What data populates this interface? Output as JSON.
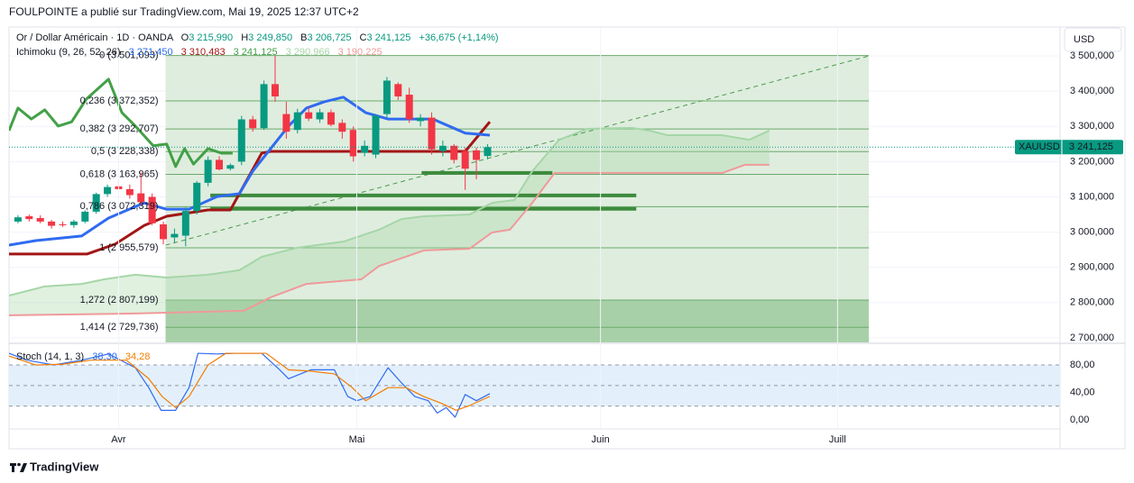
{
  "header": {
    "publisher": "FOULPOINTE a publié sur TradingView.com, Mai 19, 2025 12:37 UTC+2",
    "symbol": "Or / Dollar Américain · 1D · OANDA",
    "ohlc": [
      {
        "key": "O",
        "value": "3 215,990"
      },
      {
        "key": "H",
        "value": "3 249,850"
      },
      {
        "key": "B",
        "value": "3 206,725"
      },
      {
        "key": "C",
        "value": "3 241,125"
      }
    ],
    "change": "+36,675 (+1,14%)",
    "ichimoku": {
      "name": "Ichimoku (9, 26, 52, 26)",
      "values": [
        "3 271,450",
        "3 310,483",
        "3 241,125",
        "3 290,966",
        "3 190,225"
      ]
    },
    "currency": "USD",
    "brand": "TradingView"
  },
  "last_price": {
    "symbol": "XAUUSD",
    "value": 3241.125,
    "label": "3 241,125",
    "color": "#089981"
  },
  "chart_data": [
    {
      "type": "candlestick",
      "up_color": "#089981",
      "down_color": "#f23645",
      "xlim": [
        0,
        94
      ],
      "ylim": [
        2687,
        3582
      ],
      "xticks": [
        {
          "value": 9.8,
          "label": "Avr"
        },
        {
          "value": 31.1,
          "label": "Mai"
        },
        {
          "value": 52.9,
          "label": "Juin"
        },
        {
          "value": 74.1,
          "label": "Juill"
        }
      ],
      "yticks": [
        {
          "value": 2700,
          "label": "2 700,000"
        },
        {
          "value": 2800,
          "label": "2 800,000"
        },
        {
          "value": 2900,
          "label": "2 900,000"
        },
        {
          "value": 3000,
          "label": "3 000,000"
        },
        {
          "value": 3100,
          "label": "3 100,000"
        },
        {
          "value": 3200,
          "label": "3 200,000"
        },
        {
          "value": 3300,
          "label": "3 300,000"
        },
        {
          "value": 3400,
          "label": "3 400,000"
        },
        {
          "value": 3500,
          "label": "3 500,000"
        }
      ],
      "x": [
        0.8,
        1.8,
        2.8,
        3.8,
        4.8,
        5.8,
        6.8,
        7.8,
        8.8,
        9.8,
        10.8,
        11.8,
        12.8,
        13.8,
        14.8,
        15.8,
        16.8,
        17.8,
        18.8,
        19.8,
        20.8,
        21.8,
        22.8,
        23.8,
        24.8,
        25.8,
        26.8,
        27.8,
        28.8,
        29.8,
        30.8,
        31.8,
        32.8,
        33.8,
        34.8,
        35.8,
        36.8,
        37.8,
        38.8,
        39.8,
        40.8,
        41.8,
        42.8
      ],
      "open": [
        3030,
        3045,
        3040,
        3030,
        3022,
        3020,
        3030,
        3058,
        3108,
        3130,
        3122,
        3110,
        3100,
        3022,
        2985,
        2990,
        3060,
        3140,
        3205,
        3180,
        3200,
        3320,
        3295,
        3420,
        3335,
        3290,
        3340,
        3320,
        3340,
        3310,
        3290,
        3225,
        3220,
        3335,
        3420,
        3390,
        3315,
        3325,
        3230,
        3245,
        3230,
        3232,
        3215.99
      ],
      "high": [
        3048,
        3050,
        3048,
        3035,
        3030,
        3035,
        3062,
        3112,
        3135,
        3148,
        3135,
        3170,
        3110,
        3030,
        3010,
        3070,
        3145,
        3215,
        3215,
        3195,
        3330,
        3330,
        3430,
        3500,
        3370,
        3350,
        3355,
        3350,
        3348,
        3320,
        3300,
        3260,
        3335,
        3440,
        3425,
        3410,
        3335,
        3340,
        3260,
        3250,
        3240,
        3240,
        3249.85
      ],
      "low": [
        3025,
        3030,
        3025,
        3010,
        3015,
        3012,
        3025,
        3052,
        3100,
        3115,
        3095,
        3075,
        3020,
        2965,
        2970,
        2960,
        3050,
        3130,
        3175,
        3175,
        3190,
        3285,
        3290,
        3370,
        3265,
        3280,
        3315,
        3310,
        3300,
        3265,
        3200,
        3215,
        3210,
        3325,
        3375,
        3310,
        3300,
        3220,
        3215,
        3195,
        3120,
        3150,
        3206.725
      ],
      "close": [
        3042,
        3037,
        3030,
        3018,
        3020,
        3030,
        3058,
        3108,
        3128,
        3122,
        3105,
        3085,
        3025,
        2980,
        2995,
        3060,
        3140,
        3205,
        3178,
        3190,
        3320,
        3295,
        3420,
        3385,
        3285,
        3340,
        3322,
        3340,
        3305,
        3285,
        3215,
        3245,
        3330,
        3430,
        3385,
        3320,
        3325,
        3235,
        3245,
        3205,
        3180,
        3205,
        3241.125
      ],
      "series": [
        {
          "color": "#a5d6a7",
          "width": 2,
          "x": [
            0,
            3.2,
            6.5,
            8.5,
            11.3,
            14.1,
            17.8,
            20.6,
            22.6,
            25.8,
            29.9,
            33.1,
            35.1,
            37.1,
            41.2,
            43.2,
            45.2,
            46.8,
            49.2,
            51.7,
            55.7,
            57.3,
            58.9,
            63.8,
            66.2,
            68
          ],
          "values": [
            2820,
            2846,
            2853,
            2866,
            2879,
            2871,
            2879,
            2892,
            2930,
            2956,
            2973,
            3007,
            3037,
            3045,
            3050,
            3083,
            3091,
            3173,
            3262,
            3293,
            3296,
            3288,
            3275,
            3275,
            3262,
            3288
          ]
        },
        {
          "color": "#ef9a9a",
          "width": 2,
          "x": [
            0,
            11.3,
            21,
            23.4,
            26.6,
            31.5,
            33.1,
            37.1,
            41.2,
            43.2,
            44.8,
            46.8,
            48.8,
            63.8,
            65.8,
            68
          ],
          "values": [
            2764,
            2769,
            2777,
            2815,
            2853,
            2866,
            2904,
            2948,
            2953,
            2999,
            3007,
            3083,
            3168,
            3168,
            3191,
            3191
          ]
        },
        {
          "color": "#43a047",
          "width": 3,
          "x": [
            0,
            0.8,
            2,
            3.2,
            4.4,
            5.6,
            6.9,
            8.9,
            10.1,
            11.3,
            12.9,
            14.1,
            14.9,
            15.7,
            16.5,
            17.8,
            19,
            20
          ],
          "values": [
            3288,
            3352,
            3321,
            3347,
            3301,
            3313,
            3377,
            3434,
            3339,
            3301,
            3245,
            3250,
            3186,
            3237,
            3193,
            3237,
            3224,
            3224
          ]
        },
        {
          "color": "#a31515",
          "width": 3,
          "x": [
            0,
            7,
            9.5,
            12.1,
            14.1,
            17.8,
            19.8,
            20.6,
            22.6,
            23.4,
            40.8,
            43
          ],
          "values": [
            2938,
            2938,
            2966,
            3019,
            3045,
            3063,
            3063,
            3109,
            3224,
            3229,
            3229,
            3313
          ]
        },
        {
          "color": "#2f6bf0",
          "width": 3,
          "x": [
            0,
            2.4,
            6.5,
            8.9,
            12.1,
            14.1,
            16.1,
            18.6,
            20.6,
            21.8,
            23.4,
            25,
            26.6,
            28.2,
            29.9,
            31.9,
            33.9,
            37.9,
            40.8,
            43
          ],
          "values": [
            2963,
            2976,
            2989,
            3040,
            3083,
            3065,
            3065,
            3101,
            3109,
            3173,
            3237,
            3301,
            3352,
            3370,
            3383,
            3339,
            3321,
            3321,
            3281,
            3275
          ]
        }
      ],
      "cloud_color": "#a5d6a7",
      "fib": {
        "x": [
          14,
          76.9
        ],
        "line_color": "#6aaa6a",
        "label_color": "#4b8b4b",
        "levels": [
          3501.093,
          3372.352,
          3292.707,
          3228.338,
          3163.965,
          3072.319,
          2955.579,
          2807.199,
          2729.736
        ],
        "labels": [
          "0 (3 501,093)",
          "0,236 (3 372,352)",
          "0,382 (3 292,707)",
          "0,5 (3 228,338)",
          "0,618 (3 163,965)",
          "0,786 (3 072,319)",
          "1 (2 955,579)",
          "1,272 (2 807,199)",
          "1,414 (2 729,736)"
        ],
        "zone_colors": [
          "#dcebdb",
          "#dcebdb",
          "#dcebdb",
          "#dcebdb",
          "#dcebdb",
          "#dcebdb",
          "#dcebdb",
          "#9fcb9f"
        ]
      },
      "trend_line": {
        "x": [
          14,
          76.9
        ],
        "values": [
          2963,
          3500
        ],
        "color": "#4b9b4b"
      },
      "support_lines": [
        {
          "x": [
            36.9,
            48.6
          ],
          "value": 3168
        },
        {
          "x": [
            18,
            56.1
          ],
          "value": 3104
        },
        {
          "x": [
            18,
            56.1
          ],
          "value": 3066
        }
      ],
      "support_color": "#3d8b3d"
    },
    {
      "type": "line",
      "title": "Stoch (14, 1, 3)",
      "xlim": [
        0,
        94
      ],
      "ylim": [
        -13.1,
        110.2
      ],
      "yticks": [
        {
          "value": 80,
          "label": "80,00"
        },
        {
          "value": 40,
          "label": "40,00"
        },
        {
          "value": 0,
          "label": "0,00"
        }
      ],
      "band": [
        20,
        80
      ],
      "midline": 50,
      "band_color": "#e3f0fc",
      "series": [
        {
          "color": "#2f6bf0",
          "last_label": "38,30",
          "x": [
            0,
            1.6,
            4,
            6.5,
            8.9,
            11.3,
            12.5,
            13.6,
            14.9,
            16.1,
            16.9,
            18.6,
            20.2,
            22.6,
            24.2,
            25,
            27,
            29.1,
            30.3,
            31.1,
            32.3,
            33.9,
            35.1,
            36.3,
            37.5,
            38.3,
            39.1,
            39.9,
            40.8,
            41.8,
            43
          ],
          "values": [
            97,
            87,
            80,
            87,
            96,
            76,
            47,
            14,
            14,
            47,
            97,
            96,
            97,
            97,
            73,
            60,
            73,
            73,
            34,
            28,
            34,
            76,
            54,
            34,
            28,
            10,
            18,
            4,
            37,
            28,
            38.3
          ]
        },
        {
          "color": "#f57c00",
          "last_label": "34,28",
          "x": [
            0,
            2.4,
            4.8,
            7.3,
            10.5,
            12.5,
            13.7,
            14.9,
            16.1,
            17.8,
            19.4,
            21.4,
            23,
            25,
            27,
            29.1,
            30.7,
            31.9,
            33.9,
            35.5,
            37.1,
            38.7,
            40,
            41.2,
            43
          ],
          "values": [
            93,
            80,
            81,
            87,
            87,
            60,
            34,
            18,
            34,
            80,
            97,
            97,
            97,
            73,
            71,
            67,
            47,
            28,
            47,
            47,
            34,
            24,
            14,
            21,
            34.28
          ]
        }
      ]
    }
  ]
}
